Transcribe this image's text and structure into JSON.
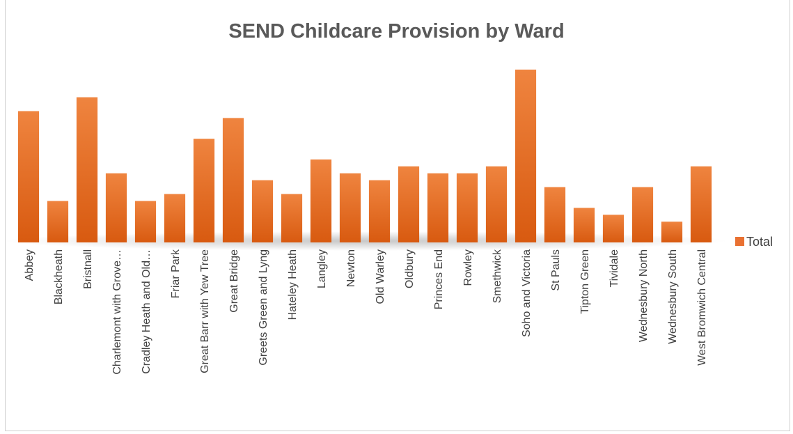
{
  "chart_data": {
    "type": "bar",
    "title": "SEND Childcare Provision by Ward",
    "xlabel": "",
    "ylabel": "",
    "ylim": [
      0,
      26
    ],
    "grid": false,
    "legend_position": "right",
    "bar_color": "#E97132",
    "categories": [
      "Abbey",
      "Blackheath",
      "Bristnall",
      "Charlemont with Grove…",
      "Cradley Heath and Old…",
      "Friar Park",
      "Great Barr with Yew Tree",
      "Great Bridge",
      "Greets Green and Lyng",
      "Hateley Heath",
      "Langley",
      "Newton",
      "Old Warley",
      "Oldbury",
      "Princes End",
      "Rowley",
      "Smethwick",
      "Soho and Victoria",
      "St Pauls",
      "Tipton Green",
      "Tividale",
      "Wednesbury North",
      "Wednesbury South",
      "West Bromwich Central"
    ],
    "series": [
      {
        "name": "Total",
        "values": [
          19,
          6,
          21,
          10,
          6,
          7,
          15,
          18,
          9,
          7,
          12,
          10,
          9,
          11,
          10,
          10,
          11,
          25,
          8,
          5,
          4,
          8,
          3,
          11
        ]
      }
    ]
  }
}
